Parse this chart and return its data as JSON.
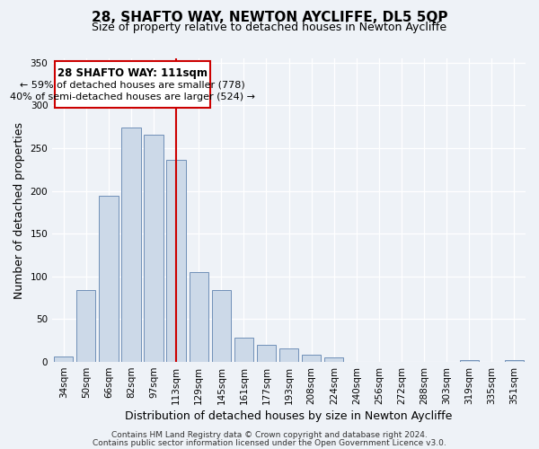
{
  "title": "28, SHAFTO WAY, NEWTON AYCLIFFE, DL5 5QP",
  "subtitle": "Size of property relative to detached houses in Newton Aycliffe",
  "xlabel": "Distribution of detached houses by size in Newton Aycliffe",
  "ylabel": "Number of detached properties",
  "bar_labels": [
    "34sqm",
    "50sqm",
    "66sqm",
    "82sqm",
    "97sqm",
    "113sqm",
    "129sqm",
    "145sqm",
    "161sqm",
    "177sqm",
    "193sqm",
    "208sqm",
    "224sqm",
    "240sqm",
    "256sqm",
    "272sqm",
    "288sqm",
    "303sqm",
    "319sqm",
    "335sqm",
    "351sqm"
  ],
  "bar_values": [
    6,
    84,
    194,
    274,
    266,
    236,
    105,
    84,
    28,
    20,
    16,
    8,
    5,
    0,
    0,
    0,
    0,
    0,
    2,
    0,
    2
  ],
  "bar_color": "#ccd9e8",
  "bar_edge_color": "#7090b8",
  "vline_x_index": 5,
  "vline_color": "#cc0000",
  "annotation_title": "28 SHAFTO WAY: 111sqm",
  "annotation_line1": "← 59% of detached houses are smaller (778)",
  "annotation_line2": "40% of semi-detached houses are larger (524) →",
  "annotation_box_color": "#ffffff",
  "annotation_box_edge_color": "#cc0000",
  "ylim": [
    0,
    355
  ],
  "yticks": [
    0,
    50,
    100,
    150,
    200,
    250,
    300,
    350
  ],
  "footer1": "Contains HM Land Registry data © Crown copyright and database right 2024.",
  "footer2": "Contains public sector information licensed under the Open Government Licence v3.0.",
  "background_color": "#eef2f7",
  "grid_color": "#ffffff",
  "title_fontsize": 11,
  "subtitle_fontsize": 9,
  "ylabel_fontsize": 9,
  "xlabel_fontsize": 9,
  "tick_fontsize": 7.5,
  "footer_fontsize": 6.5
}
